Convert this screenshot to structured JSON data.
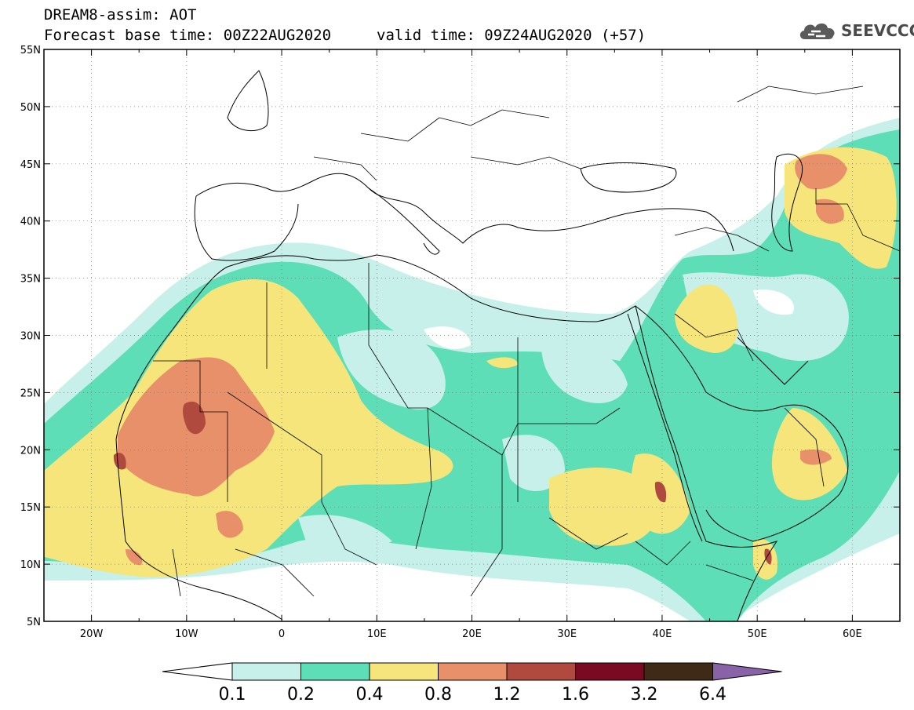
{
  "header": {
    "title": "DREAM8-assim: AOT",
    "forecast_base": "Forecast base time: 00Z22AUG2020",
    "valid_time": "valid time: 09Z24AUG2020 (+57)"
  },
  "logo": {
    "text": "SEEVCCC",
    "icon": "cloud-icon"
  },
  "axes": {
    "lon_labels": [
      "20W",
      "10W",
      "0",
      "10E",
      "20E",
      "30E",
      "40E",
      "50E",
      "60E"
    ],
    "lat_labels": [
      "55N",
      "50N",
      "45N",
      "40N",
      "35N",
      "30N",
      "25N",
      "20N",
      "15N",
      "10N",
      "5N"
    ],
    "lon_range": [
      -25,
      65
    ],
    "lat_range": [
      5,
      55
    ]
  },
  "colorbar": {
    "labels": [
      "0.1",
      "0.2",
      "0.4",
      "0.8",
      "1.2",
      "1.6",
      "3.2",
      "6.4"
    ],
    "colors": [
      "#c6f0e9",
      "#5ddeb6",
      "#f5e57a",
      "#e8906a",
      "#b04a3e",
      "#7a0a22",
      "#3e2a16",
      "#8a62a8"
    ]
  },
  "colors": {
    "c01": "#c6f0e9",
    "c02": "#5ddeb6",
    "c04": "#f5e57a",
    "c08": "#e8906a",
    "c12": "#b04a3e"
  }
}
